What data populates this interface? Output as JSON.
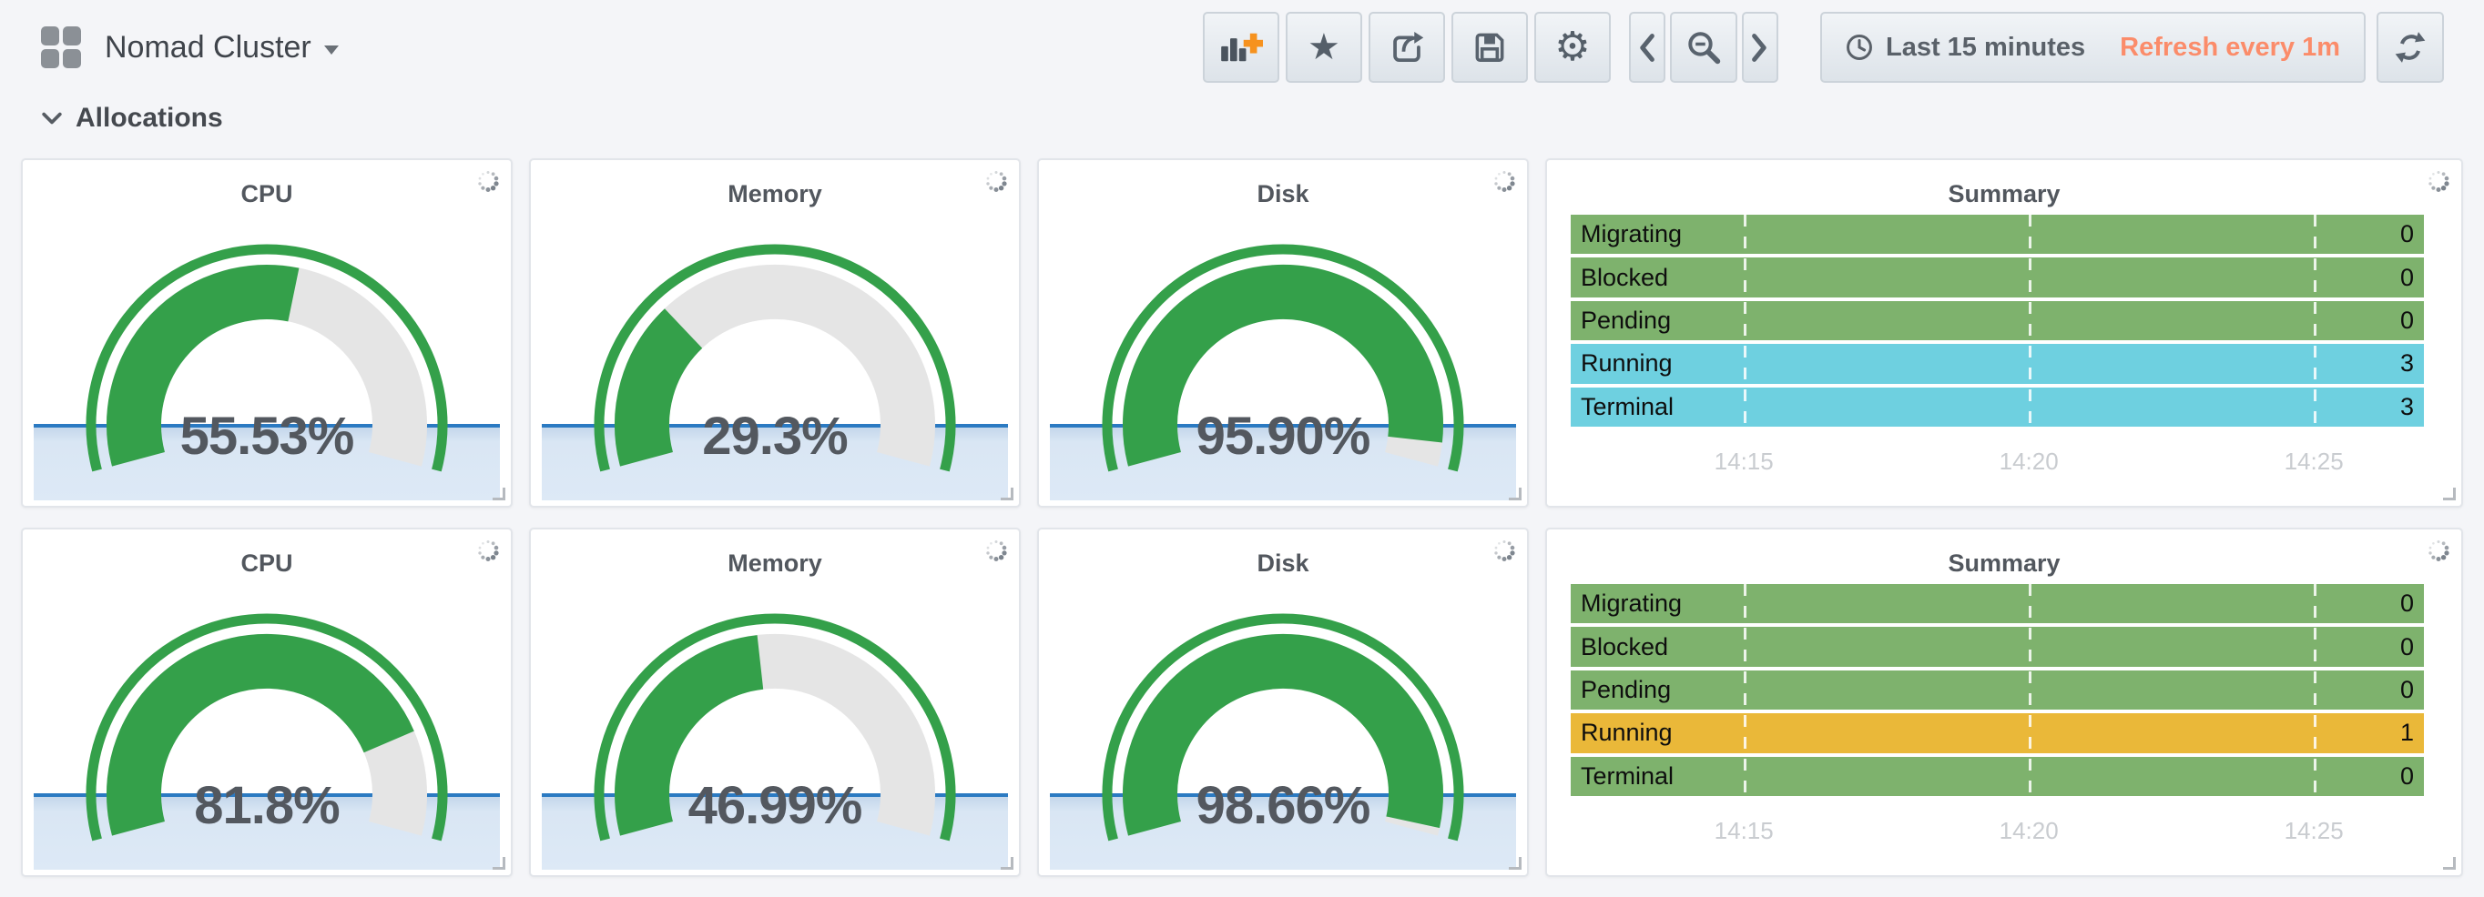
{
  "nav": {
    "dashboard_title": "Nomad Cluster",
    "toolbar_icons": [
      "add-panel",
      "star",
      "share",
      "save",
      "settings"
    ],
    "time_nav_icons": [
      "move-back",
      "zoom-out",
      "move-forward"
    ],
    "time_range_label": "Last 15 minutes",
    "refresh_label": "Refresh every 1m"
  },
  "section": {
    "title": "Allocations"
  },
  "colors": {
    "gauge_green": "#34a04a",
    "gauge_rest": "#e5e5e5",
    "spark_line": "#2b7ac2",
    "spark_fill": "#dce8f6",
    "green": "#7eb26d",
    "cyan": "#6ed0e0",
    "orange": "#eab839",
    "refresh_orange": "#fb8c6a"
  },
  "rows": [
    {
      "panels": [
        {
          "type": "gauge",
          "title": "CPU",
          "value": 55.53,
          "display": "55.53%",
          "min": 0,
          "max": 100
        },
        {
          "type": "gauge",
          "title": "Memory",
          "value": 29.3,
          "display": "29.3%",
          "min": 0,
          "max": 100
        },
        {
          "type": "gauge",
          "title": "Disk",
          "value": 95.9,
          "display": "95.90%",
          "min": 0,
          "max": 100
        },
        {
          "type": "discrete",
          "title": "Summary",
          "status_rows": [
            {
              "label": "Migrating",
              "value": "0",
              "color": "green"
            },
            {
              "label": "Blocked",
              "value": "0",
              "color": "green"
            },
            {
              "label": "Pending",
              "value": "0",
              "color": "green"
            },
            {
              "label": "Running",
              "value": "3",
              "color": "cyan"
            },
            {
              "label": "Terminal",
              "value": "3",
              "color": "cyan"
            }
          ],
          "x_ticks": [
            "14:15",
            "14:20",
            "14:25"
          ]
        }
      ]
    },
    {
      "panels": [
        {
          "type": "gauge",
          "title": "CPU",
          "value": 81.8,
          "display": "81.8%",
          "min": 0,
          "max": 100
        },
        {
          "type": "gauge",
          "title": "Memory",
          "value": 46.99,
          "display": "46.99%",
          "min": 0,
          "max": 100
        },
        {
          "type": "gauge",
          "title": "Disk",
          "value": 98.66,
          "display": "98.66%",
          "min": 0,
          "max": 100
        },
        {
          "type": "discrete",
          "title": "Summary",
          "status_rows": [
            {
              "label": "Migrating",
              "value": "0",
              "color": "green"
            },
            {
              "label": "Blocked",
              "value": "0",
              "color": "green"
            },
            {
              "label": "Pending",
              "value": "0",
              "color": "green"
            },
            {
              "label": "Running",
              "value": "1",
              "color": "orange"
            },
            {
              "label": "Terminal",
              "value": "0",
              "color": "green"
            }
          ],
          "x_ticks": [
            "14:15",
            "14:20",
            "14:25"
          ]
        }
      ]
    }
  ],
  "tick_positions_pct": [
    20.3,
    53.7,
    87.1
  ]
}
